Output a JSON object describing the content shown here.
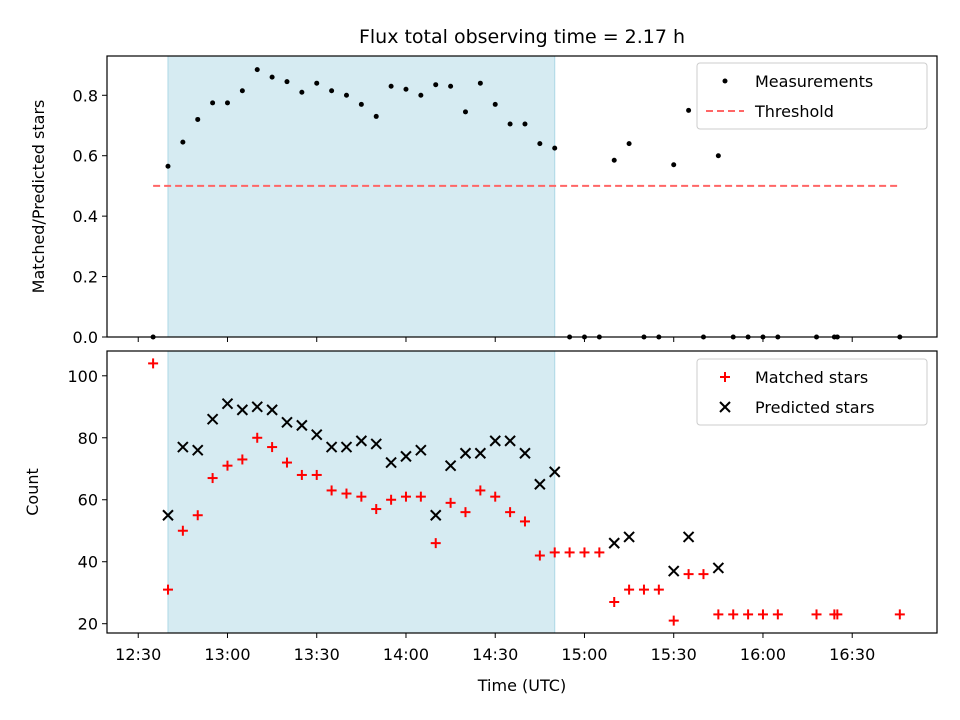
{
  "chart_data": {
    "type": "scatter",
    "title": "Flux total observing time = 2.17 h",
    "xlabel": "Time (UTC)",
    "x_ticks": [
      "12:30",
      "13:00",
      "13:30",
      "14:00",
      "14:30",
      "15:00",
      "15:30",
      "16:00",
      "16:30"
    ],
    "shaded_interval": [
      "12:40",
      "14:50"
    ],
    "colors": {
      "shade": "#add8e6",
      "threshold": "#ff6666",
      "matched": "#ff0000",
      "predicted": "#000000",
      "measurements": "#000000"
    },
    "panels": [
      {
        "ylabel": "Matched/Predicted stars",
        "ylim": [
          0,
          0.93
        ],
        "y_ticks": [
          "0.0",
          "0.2",
          "0.4",
          "0.6",
          "0.8"
        ],
        "legend_position": "top-right",
        "series": [
          {
            "name": "Measurements",
            "kind": "points",
            "x": [
              "12:35",
              "12:40",
              "12:45",
              "12:50",
              "12:55",
              "13:00",
              "13:05",
              "13:10",
              "13:15",
              "13:20",
              "13:25",
              "13:30",
              "13:35",
              "13:40",
              "13:45",
              "13:50",
              "13:55",
              "14:00",
              "14:05",
              "14:10",
              "14:15",
              "14:20",
              "14:25",
              "14:30",
              "14:35",
              "14:40",
              "14:45",
              "14:50",
              "14:55",
              "15:00",
              "15:05",
              "15:10",
              "15:15",
              "15:20",
              "15:25",
              "15:30",
              "15:35",
              "15:40",
              "15:45",
              "15:50",
              "15:55",
              "16:00",
              "16:05",
              "16:18",
              "16:24",
              "16:25",
              "16:46"
            ],
            "y": [
              0.0,
              0.565,
              0.645,
              0.72,
              0.775,
              0.775,
              0.815,
              0.885,
              0.86,
              0.845,
              0.81,
              0.84,
              0.815,
              0.8,
              0.77,
              0.73,
              0.83,
              0.82,
              0.8,
              0.835,
              0.83,
              0.745,
              0.84,
              0.77,
              0.705,
              0.705,
              0.64,
              0.625,
              0.0,
              0.0,
              0.0,
              0.585,
              0.64,
              0.0,
              0.0,
              0.57,
              0.75,
              0.0,
              0.6,
              0.0,
              0.0,
              0.0,
              0.0,
              0.0,
              0.0,
              0.0,
              0.0
            ]
          },
          {
            "name": "Threshold",
            "kind": "dashed-line",
            "x": [
              "12:35",
              "16:46"
            ],
            "y": [
              0.5,
              0.5
            ]
          }
        ]
      },
      {
        "ylabel": "Count",
        "ylim": [
          17,
          108
        ],
        "y_ticks": [
          "20",
          "40",
          "60",
          "80",
          "100"
        ],
        "legend_position": "top-right",
        "series": [
          {
            "name": "Matched stars",
            "marker": "plus",
            "x": [
              "12:35",
              "12:40",
              "12:45",
              "12:50",
              "12:55",
              "13:00",
              "13:05",
              "13:10",
              "13:15",
              "13:20",
              "13:25",
              "13:30",
              "13:35",
              "13:40",
              "13:45",
              "13:50",
              "13:55",
              "14:00",
              "14:05",
              "14:10",
              "14:15",
              "14:20",
              "14:25",
              "14:30",
              "14:35",
              "14:40",
              "14:45",
              "14:50",
              "14:55",
              "15:00",
              "15:05",
              "15:10",
              "15:15",
              "15:20",
              "15:25",
              "15:30",
              "15:35",
              "15:40",
              "15:45",
              "15:50",
              "15:55",
              "16:00",
              "16:05",
              "16:18",
              "16:24",
              "16:25",
              "16:46"
            ],
            "y": [
              104,
              31,
              50,
              55,
              67,
              71,
              73,
              80,
              77,
              72,
              68,
              68,
              63,
              62,
              61,
              57,
              60,
              61,
              61,
              46,
              59,
              56,
              63,
              61,
              56,
              53,
              42,
              43,
              43,
              43,
              43,
              27,
              31,
              31,
              31,
              21,
              36,
              36,
              23,
              23,
              23,
              23,
              23,
              23,
              23,
              23,
              23
            ]
          },
          {
            "name": "Predicted stars",
            "marker": "x",
            "x": [
              "12:40",
              "12:45",
              "12:50",
              "12:55",
              "13:00",
              "13:05",
              "13:10",
              "13:15",
              "13:20",
              "13:25",
              "13:30",
              "13:35",
              "13:40",
              "13:45",
              "13:50",
              "13:55",
              "14:00",
              "14:05",
              "14:10",
              "14:15",
              "14:20",
              "14:25",
              "14:30",
              "14:35",
              "14:40",
              "14:45",
              "14:50",
              "15:10",
              "15:15",
              "15:30",
              "15:35",
              "15:45"
            ],
            "y": [
              55,
              77,
              76,
              86,
              91,
              89,
              90,
              89,
              85,
              84,
              81,
              77,
              77,
              79,
              78,
              72,
              74,
              76,
              55,
              71,
              75,
              75,
              79,
              79,
              75,
              65,
              69,
              46,
              48,
              37,
              48,
              38
            ]
          }
        ]
      }
    ]
  }
}
